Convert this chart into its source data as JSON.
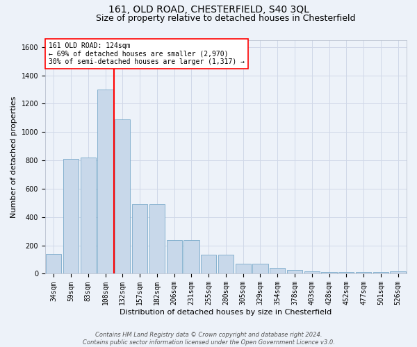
{
  "title": "161, OLD ROAD, CHESTERFIELD, S40 3QL",
  "subtitle": "Size of property relative to detached houses in Chesterfield",
  "xlabel": "Distribution of detached houses by size in Chesterfield",
  "ylabel": "Number of detached properties",
  "categories": [
    "34sqm",
    "59sqm",
    "83sqm",
    "108sqm",
    "132sqm",
    "157sqm",
    "182sqm",
    "206sqm",
    "231sqm",
    "255sqm",
    "280sqm",
    "305sqm",
    "329sqm",
    "354sqm",
    "378sqm",
    "403sqm",
    "428sqm",
    "452sqm",
    "477sqm",
    "501sqm",
    "526sqm"
  ],
  "values": [
    140,
    810,
    820,
    1300,
    1090,
    490,
    490,
    235,
    235,
    135,
    135,
    70,
    70,
    40,
    25,
    15,
    10,
    10,
    10,
    10,
    15
  ],
  "bar_color": "#c8d8ea",
  "bar_edge_color": "#7aaaca",
  "grid_color": "#d0d8e8",
  "bg_color": "#edf2f9",
  "annotation_line_color": "red",
  "annotation_text": "161 OLD ROAD: 124sqm\n← 69% of detached houses are smaller (2,970)\n30% of semi-detached houses are larger (1,317) →",
  "annotation_box_color": "white",
  "annotation_box_edge": "red",
  "ylim": [
    0,
    1650
  ],
  "yticks": [
    0,
    200,
    400,
    600,
    800,
    1000,
    1200,
    1400,
    1600
  ],
  "footnote": "Contains HM Land Registry data © Crown copyright and database right 2024.\nContains public sector information licensed under the Open Government Licence v3.0.",
  "title_fontsize": 10,
  "subtitle_fontsize": 9,
  "xlabel_fontsize": 8,
  "ylabel_fontsize": 8,
  "tick_fontsize": 7,
  "annot_fontsize": 7,
  "footnote_fontsize": 6
}
